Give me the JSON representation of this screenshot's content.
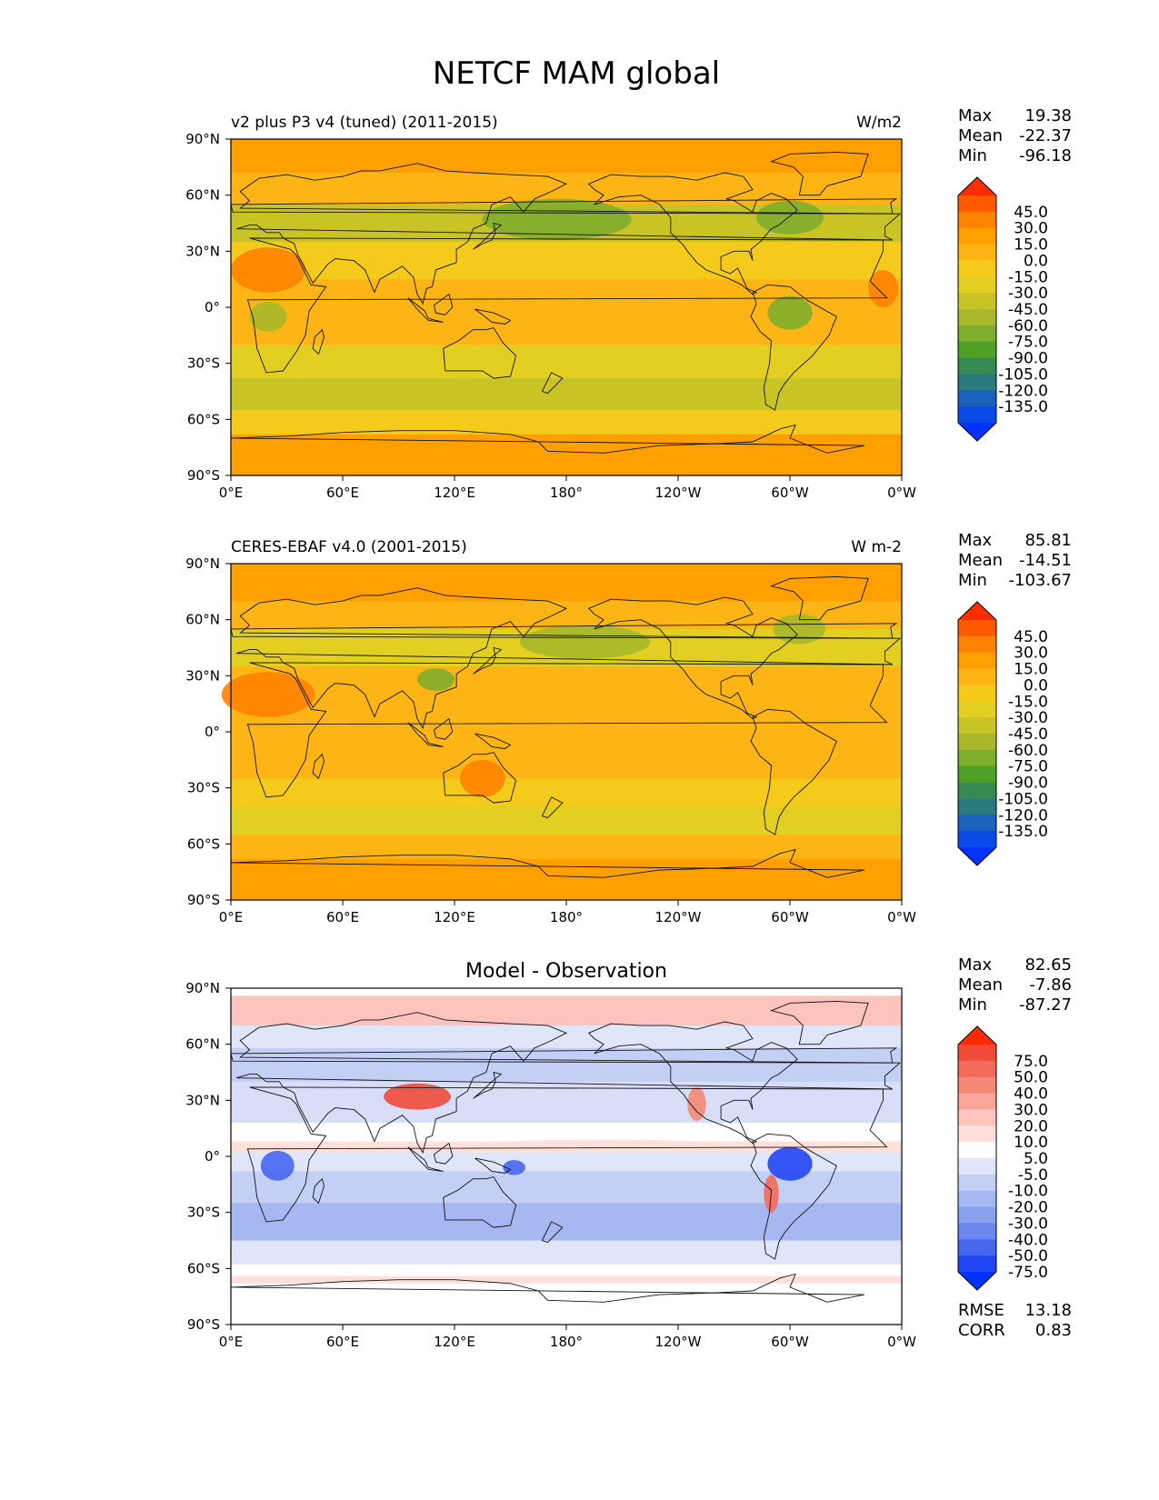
{
  "figure": {
    "title": "NETCF MAM global"
  },
  "axes": {
    "lat_ticks": [
      "90°N",
      "60°N",
      "30°N",
      "0°",
      "30°S",
      "60°S",
      "90°S"
    ],
    "lon_ticks": [
      "0°E",
      "60°E",
      "120°E",
      "180°",
      "120°W",
      "60°W",
      "0°W"
    ]
  },
  "panels": [
    {
      "left_title": "v2 plus P3 v4 (tuned) (2011-2015)",
      "center_title": "",
      "units": "W/m2",
      "stats": [
        {
          "label": "Max",
          "value": "19.38"
        },
        {
          "label": "Mean",
          "value": "-22.37"
        },
        {
          "label": "Min",
          "value": "-96.18"
        }
      ],
      "colorbar": {
        "labels": [
          "45.0",
          "30.0",
          "15.0",
          "0.0",
          "-15.0",
          "-30.0",
          "-45.0",
          "-60.0",
          "-75.0",
          "-90.0",
          "-105.0",
          "-120.0",
          "-135.0"
        ],
        "colors": [
          "#ff2d00",
          "#ff5a00",
          "#ff8200",
          "#ffa000",
          "#fdb515",
          "#f4cb1a",
          "#e2cf22",
          "#c8c426",
          "#a8b82a",
          "#7fad2c",
          "#4ea027",
          "#368a52",
          "#2a7a7e",
          "#1b62bd",
          "#0a4ae6",
          "#0033ff"
        ]
      },
      "footer": []
    },
    {
      "left_title": "CERES-EBAF v4.0 (2001-2015)",
      "center_title": "",
      "units": "W m-2",
      "stats": [
        {
          "label": "Max",
          "value": "85.81"
        },
        {
          "label": "Mean",
          "value": "-14.51"
        },
        {
          "label": "Min",
          "value": "-103.67"
        }
      ],
      "colorbar": {
        "labels": [
          "45.0",
          "30.0",
          "15.0",
          "0.0",
          "-15.0",
          "-30.0",
          "-45.0",
          "-60.0",
          "-75.0",
          "-90.0",
          "-105.0",
          "-120.0",
          "-135.0"
        ],
        "colors": [
          "#ff2d00",
          "#ff5a00",
          "#ff8200",
          "#ffa000",
          "#fdb515",
          "#f4cb1a",
          "#e2cf22",
          "#c8c426",
          "#a8b82a",
          "#7fad2c",
          "#4ea027",
          "#368a52",
          "#2a7a7e",
          "#1b62bd",
          "#0a4ae6",
          "#0033ff"
        ]
      },
      "footer": []
    },
    {
      "left_title": "",
      "center_title": "Model - Observation",
      "units": "",
      "stats": [
        {
          "label": "Max",
          "value": "82.65"
        },
        {
          "label": "Mean",
          "value": "-7.86"
        },
        {
          "label": "Min",
          "value": "-87.27"
        }
      ],
      "colorbar": {
        "labels": [
          "75.0",
          "50.0",
          "40.0",
          "30.0",
          "20.0",
          "10.0",
          "5.0",
          "-5.0",
          "-10.0",
          "-20.0",
          "-30.0",
          "-40.0",
          "-50.0",
          "-75.0"
        ],
        "colors": [
          "#ff2a00",
          "#f04a3a",
          "#f46a5a",
          "#f68878",
          "#f9a698",
          "#fcc4bc",
          "#fde0dc",
          "#ffffff",
          "#e0e6fa",
          "#c4cff6",
          "#a6b8f2",
          "#8aa2ee",
          "#6b86ec",
          "#4766ee",
          "#2246f3",
          "#0033ff"
        ]
      },
      "footer": [
        {
          "label": "RMSE",
          "value": "13.18"
        },
        {
          "label": "CORR",
          "value": "0.83"
        }
      ]
    }
  ]
}
